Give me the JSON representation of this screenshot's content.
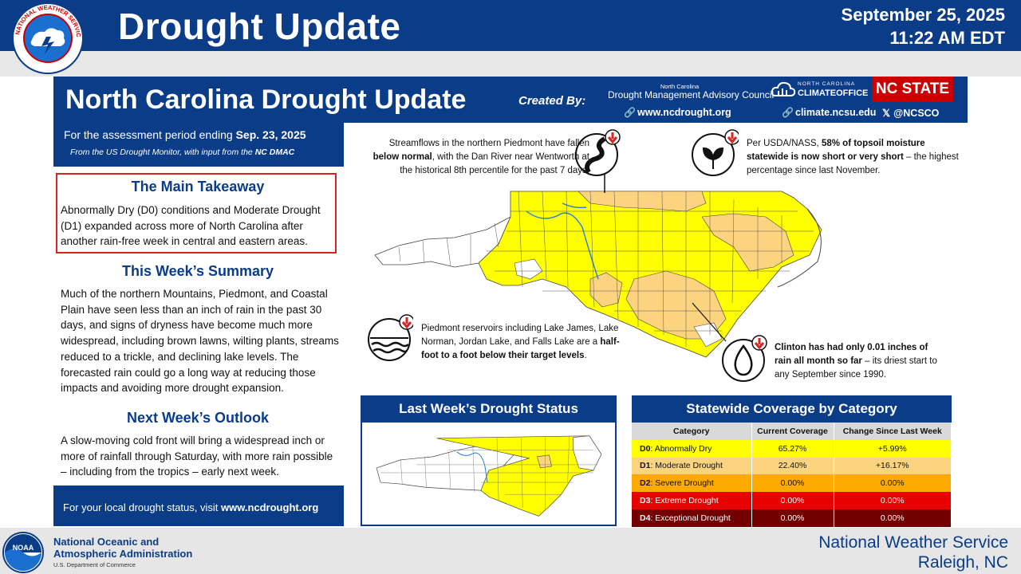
{
  "banner": {
    "title": "Drought Update",
    "date": "September 25, 2025",
    "time": "11:22 AM EDT",
    "logo_text": "NATIONAL WEATHER SERVICE"
  },
  "card": {
    "title": "North Carolina Drought Update",
    "created_by": "Created By:",
    "dmac_small": "North Carolina",
    "dmac_name": "Drought Management Advisory Council",
    "link_ncdrought": "www.ncdrought.org",
    "climate_office_small": "NORTH CAROLINA",
    "climate_office_big": "CLIMATEOFFICE",
    "link_climate": "climate.ncsu.edu",
    "link_x": "@NCSCO",
    "ncstate": "NC STATE"
  },
  "left": {
    "assess_prefix": "For the assessment period ending ",
    "assess_date": "Sep. 23, 2025",
    "assess_sub_prefix": "From the US Drought Monitor, with input from the ",
    "assess_sub_bold": "NC DMAC",
    "takeaway_title": "The Main Takeaway",
    "takeaway_text": "Abnormally Dry (D0) conditions and Moderate Drought (D1) expanded across more of North Carolina after another rain-free week in central and eastern areas.",
    "summary_title": "This Week’s Summary",
    "summary_text": "Much of the northern Mountains, Piedmont, and Coastal Plain have seen less than an inch of rain in the past 30 days, and signs of dryness have become much more widespread, including brown lawns, wilting plants, streams reduced to a trickle, and declining lake levels. The forecasted rain could go a long way at reducing those impacts and avoiding more drought expansion.",
    "outlook_title": "Next Week’s Outlook",
    "outlook_text": "A slow-moving cold front will bring a widespread inch or more of rainfall through Saturday, with more rain possible – including from the tropics – early next week.",
    "local_prefix": "For your local drought status, visit ",
    "local_link": "www.ncdrought.org"
  },
  "callouts": {
    "streamflow": {
      "icon": "river-icon",
      "pre": "Streamflows in the northern Piedmont have fallen ",
      "bold": "below normal",
      "post": ", with the Dan River near Wentworth at the historical 8th percentile for the past 7 days."
    },
    "soil": {
      "icon": "plant-icon",
      "pre": "Per USDA/NASS, ",
      "bold": "58% of topsoil moisture statewide is now short or very short",
      "post": " – the highest percentage since last November."
    },
    "reservoir": {
      "icon": "water-waves-icon",
      "pre": "Piedmont reservoirs including Lake James, Lake Norman, Jordan Lake, and Falls Lake are a ",
      "bold": "half-foot to a foot below their target levels",
      "post": "."
    },
    "clinton": {
      "icon": "water-drop-icon",
      "bold": "Clinton has had only 0.01 inches of rain all month so far",
      "post": " – its driest start to any September since 1990."
    }
  },
  "lastweek": {
    "title": "Last Week’s Drought Status"
  },
  "coverage": {
    "title": "Statewide Coverage by Category",
    "headers": [
      "Category",
      "Current Coverage",
      "Change Since Last Week"
    ],
    "rows": [
      {
        "code": "D0",
        "name": ": Abnormally Dry",
        "current": "65.27%",
        "change": "+5.99%",
        "color": "#ffff00"
      },
      {
        "code": "D1",
        "name": ": Moderate Drought",
        "current": "22.40%",
        "change": "+16.17%",
        "color": "#fcd37f"
      },
      {
        "code": "D2",
        "name": ": Severe Drought",
        "current": "0.00%",
        "change": "0.00%",
        "color": "#ffaa00"
      },
      {
        "code": "D3",
        "name": ": Extreme Drought",
        "current": "0.00%",
        "change": "0.00%",
        "color": "#e60000"
      },
      {
        "code": "D4",
        "name": ": Exceptional Drought",
        "current": "0.00%",
        "change": "0.00%",
        "color": "#730000"
      }
    ]
  },
  "footer": {
    "noaa_line1": "National Oceanic and",
    "noaa_line2": "Atmospheric Administration",
    "noaa_dept": "U.S. Department of Commerce",
    "noaa_logo_text": "NOAA",
    "nws_line1": "National Weather Service",
    "nws_line2": "Raleigh, NC"
  },
  "colors": {
    "navy": "#0b3c88",
    "d0": "#ffff00",
    "d1": "#fcd37f",
    "alert_red": "#dd2222"
  }
}
